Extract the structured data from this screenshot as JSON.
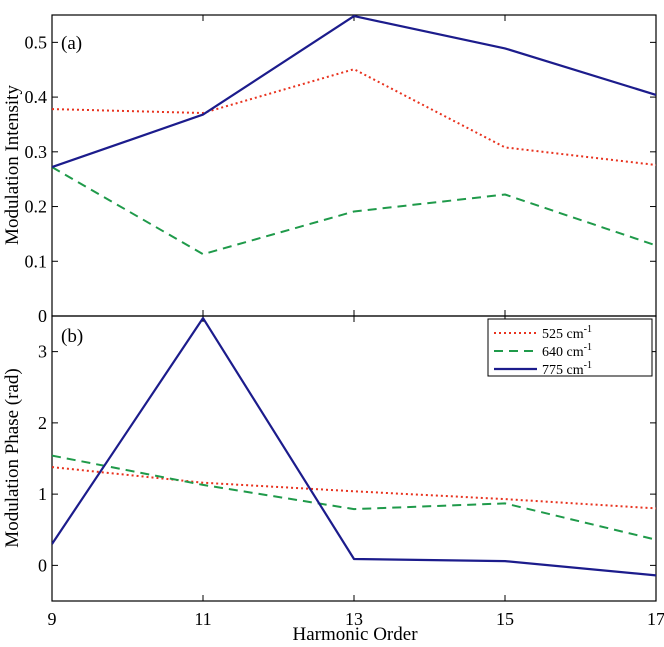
{
  "chart_data": [
    {
      "id": "a",
      "type": "line",
      "panel_label": "(a)",
      "ylabel": "Modulation Intensity",
      "xlabel": "",
      "x": [
        9,
        11,
        13,
        15,
        17
      ],
      "xlim": [
        9,
        17
      ],
      "ylim": [
        0,
        0.55
      ],
      "xticks": [
        9,
        11,
        13,
        15,
        17
      ],
      "yticks": [
        0,
        0.1,
        0.2,
        0.3,
        0.4,
        0.5
      ],
      "ytick_labels": [
        "0",
        "0.1",
        "0.2",
        "0.3",
        "0.4",
        "0.5"
      ],
      "grid": false,
      "series": [
        {
          "name": "525 cm-1",
          "values": [
            0.378,
            0.371,
            0.451,
            0.308,
            0.276
          ]
        },
        {
          "name": "640 cm-1",
          "values": [
            0.272,
            0.113,
            0.191,
            0.222,
            0.129
          ]
        },
        {
          "name": "775 cm-1",
          "values": [
            0.272,
            0.368,
            0.548,
            0.489,
            0.404
          ]
        }
      ]
    },
    {
      "id": "b",
      "type": "line",
      "panel_label": "(b)",
      "ylabel": "Modulation Phase (rad)",
      "xlabel": "Harmonic Order",
      "x": [
        9,
        11,
        13,
        15,
        17
      ],
      "xlim": [
        9,
        17
      ],
      "ylim": [
        -0.5,
        3.5
      ],
      "xticks": [
        9,
        11,
        13,
        15,
        17
      ],
      "xtick_labels": [
        "9",
        "11",
        "13",
        "15",
        "17"
      ],
      "yticks": [
        0,
        1,
        2,
        3
      ],
      "ytick_labels": [
        "0",
        "1",
        "2",
        "3"
      ],
      "grid": false,
      "series": [
        {
          "name": "525 cm-1",
          "values": [
            1.38,
            1.16,
            1.04,
            0.93,
            0.8
          ]
        },
        {
          "name": "640 cm-1",
          "values": [
            1.54,
            1.13,
            0.79,
            0.87,
            0.36
          ]
        },
        {
          "name": "775 cm-1",
          "values": [
            0.3,
            3.47,
            0.09,
            0.06,
            -0.14
          ]
        }
      ]
    }
  ],
  "legend": {
    "placement": "top-right",
    "entries": [
      {
        "label": "525 cm",
        "sup": "-1"
      },
      {
        "label": "640 cm",
        "sup": "-1"
      },
      {
        "label": "775 cm",
        "sup": "-1"
      }
    ]
  },
  "series_styles": [
    {
      "color": "#e8321e",
      "dash": "dotted"
    },
    {
      "color": "#1f9a4a",
      "dash": "dashed"
    },
    {
      "color": "#1c1c8c",
      "dash": "solid"
    }
  ]
}
